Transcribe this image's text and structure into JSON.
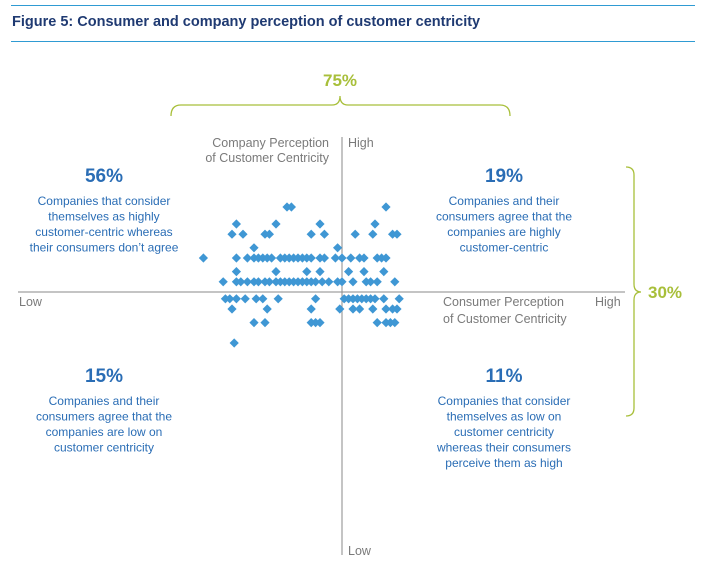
{
  "figure": {
    "title": "Figure 5: Consumer and company perception of customer centricity"
  },
  "colors": {
    "title": "#1f3a72",
    "rule": "#2f9bd3",
    "marker": "#3f97d4",
    "bracket": "#a8bf3a",
    "axis": "#8a8a8a",
    "quadrant_pct": "#2a6db5",
    "quadrant_text": "#2a6db5",
    "axis_label": "#7a7a7a"
  },
  "chart_data": {
    "type": "scatter",
    "marker": "diamond",
    "x_axis": {
      "label": "Consumer Perception of Customer Centricity",
      "low_label": "Low",
      "high_label": "High"
    },
    "y_axis": {
      "label": "Company Perception of Customer Centricity",
      "low_label": "Low",
      "high_label": "High"
    },
    "xlim": [
      -8,
      4
    ],
    "ylim": [
      -4,
      4
    ],
    "brackets": [
      {
        "orientation": "horizontal",
        "value": "75%"
      },
      {
        "orientation": "vertical",
        "value": "30%"
      }
    ],
    "quadrants": [
      {
        "position": "top-left",
        "percent": "56%",
        "lines": [
          "Companies that consider",
          "themselves as highly",
          "customer-centric whereas",
          "their consumers don’t agree"
        ]
      },
      {
        "position": "top-right",
        "percent": "19%",
        "lines": [
          "Companies and their",
          "consumers agree that the",
          "companies are highly",
          "customer-centric"
        ]
      },
      {
        "position": "bottom-left",
        "percent": "15%",
        "lines": [
          "Companies and their",
          "consumers agree that the",
          "companies are low on",
          "customer centricity"
        ]
      },
      {
        "position": "bottom-right",
        "percent": "11%",
        "lines": [
          "Companies that consider",
          "themselves as low on",
          "customer centricity",
          "whereas their consumers",
          "perceive them as high"
        ]
      }
    ],
    "points": [
      [
        -2.5,
        2.5
      ],
      [
        -2.3,
        2.5
      ],
      [
        2.0,
        2.5
      ],
      [
        -4.8,
        2.0
      ],
      [
        -3.0,
        2.0
      ],
      [
        -1.0,
        2.0
      ],
      [
        1.5,
        2.0
      ],
      [
        -5.0,
        1.7
      ],
      [
        -4.5,
        1.7
      ],
      [
        -3.5,
        1.7
      ],
      [
        -3.3,
        1.7
      ],
      [
        -1.4,
        1.7
      ],
      [
        -0.8,
        1.7
      ],
      [
        0.6,
        1.7
      ],
      [
        1.4,
        1.7
      ],
      [
        2.3,
        1.7
      ],
      [
        2.5,
        1.7
      ],
      [
        -4.0,
        1.3
      ],
      [
        -0.2,
        1.3
      ],
      [
        -6.3,
        1.0
      ],
      [
        -4.8,
        1.0
      ],
      [
        -4.3,
        1.0
      ],
      [
        -4.0,
        1.0
      ],
      [
        -3.8,
        1.0
      ],
      [
        -3.6,
        1.0
      ],
      [
        -3.4,
        1.0
      ],
      [
        -3.2,
        1.0
      ],
      [
        -2.8,
        1.0
      ],
      [
        -2.6,
        1.0
      ],
      [
        -2.4,
        1.0
      ],
      [
        -2.2,
        1.0
      ],
      [
        -2.0,
        1.0
      ],
      [
        -1.8,
        1.0
      ],
      [
        -1.6,
        1.0
      ],
      [
        -1.4,
        1.0
      ],
      [
        -1.0,
        1.0
      ],
      [
        -0.8,
        1.0
      ],
      [
        -0.3,
        1.0
      ],
      [
        0.0,
        1.0
      ],
      [
        0.4,
        1.0
      ],
      [
        0.8,
        1.0
      ],
      [
        1.0,
        1.0
      ],
      [
        1.6,
        1.0
      ],
      [
        1.8,
        1.0
      ],
      [
        2.0,
        1.0
      ],
      [
        -4.8,
        0.6
      ],
      [
        -3.0,
        0.6
      ],
      [
        -1.6,
        0.6
      ],
      [
        -1.0,
        0.6
      ],
      [
        0.3,
        0.6
      ],
      [
        1.0,
        0.6
      ],
      [
        1.9,
        0.6
      ],
      [
        -5.4,
        0.3
      ],
      [
        -4.8,
        0.3
      ],
      [
        -4.6,
        0.3
      ],
      [
        -4.3,
        0.3
      ],
      [
        -4.0,
        0.3
      ],
      [
        -3.8,
        0.3
      ],
      [
        -3.5,
        0.3
      ],
      [
        -3.3,
        0.3
      ],
      [
        -3.0,
        0.3
      ],
      [
        -2.8,
        0.3
      ],
      [
        -2.6,
        0.3
      ],
      [
        -2.4,
        0.3
      ],
      [
        -2.2,
        0.3
      ],
      [
        -2.0,
        0.3
      ],
      [
        -1.8,
        0.3
      ],
      [
        -1.6,
        0.3
      ],
      [
        -1.4,
        0.3
      ],
      [
        -1.2,
        0.3
      ],
      [
        -0.9,
        0.3
      ],
      [
        -0.6,
        0.3
      ],
      [
        -0.2,
        0.3
      ],
      [
        0.0,
        0.3
      ],
      [
        0.5,
        0.3
      ],
      [
        1.1,
        0.3
      ],
      [
        1.3,
        0.3
      ],
      [
        1.6,
        0.3
      ],
      [
        2.4,
        0.3
      ],
      [
        -5.3,
        -0.2
      ],
      [
        -5.1,
        -0.2
      ],
      [
        -4.8,
        -0.2
      ],
      [
        -4.4,
        -0.2
      ],
      [
        -3.9,
        -0.2
      ],
      [
        -3.6,
        -0.2
      ],
      [
        -2.9,
        -0.2
      ],
      [
        -1.2,
        -0.2
      ],
      [
        0.1,
        -0.2
      ],
      [
        0.3,
        -0.2
      ],
      [
        0.5,
        -0.2
      ],
      [
        0.7,
        -0.2
      ],
      [
        0.9,
        -0.2
      ],
      [
        1.1,
        -0.2
      ],
      [
        1.3,
        -0.2
      ],
      [
        1.5,
        -0.2
      ],
      [
        1.9,
        -0.2
      ],
      [
        2.6,
        -0.2
      ],
      [
        -5.0,
        -0.5
      ],
      [
        -3.4,
        -0.5
      ],
      [
        -1.4,
        -0.5
      ],
      [
        -0.1,
        -0.5
      ],
      [
        0.5,
        -0.5
      ],
      [
        0.8,
        -0.5
      ],
      [
        1.4,
        -0.5
      ],
      [
        2.0,
        -0.5
      ],
      [
        2.3,
        -0.5
      ],
      [
        2.5,
        -0.5
      ],
      [
        -4.0,
        -0.9
      ],
      [
        -3.5,
        -0.9
      ],
      [
        -1.4,
        -0.9
      ],
      [
        -1.2,
        -0.9
      ],
      [
        -1.0,
        -0.9
      ],
      [
        1.6,
        -0.9
      ],
      [
        2.0,
        -0.9
      ],
      [
        2.2,
        -0.9
      ],
      [
        2.4,
        -0.9
      ],
      [
        -4.9,
        -1.5
      ]
    ]
  }
}
